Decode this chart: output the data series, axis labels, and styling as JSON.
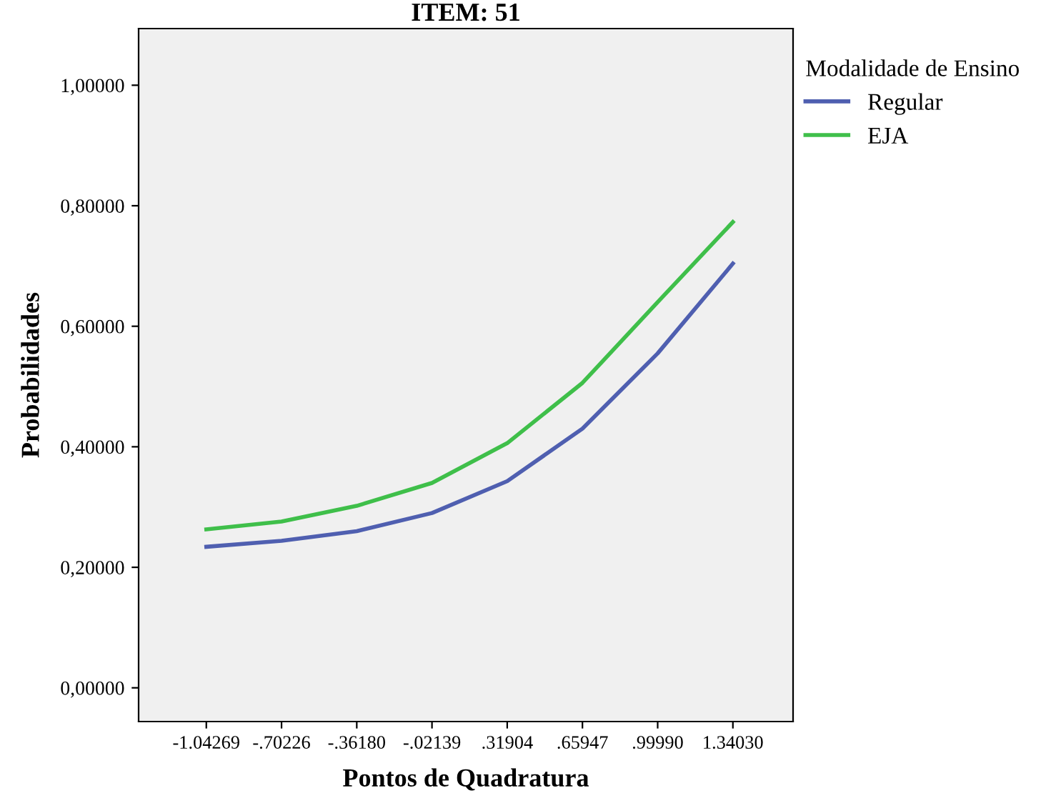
{
  "chart_data": {
    "type": "line",
    "title": "ITEM: 51",
    "xlabel": "Pontos de Quadratura",
    "ylabel": "Probabilidades",
    "legend_title": "Modalidade de Ensino",
    "legend": "top right",
    "categories": [
      "-1.04269",
      "-.70226",
      "-.36180",
      "-.02139",
      ".31904",
      ".65947",
      ".99990",
      "1.34030"
    ],
    "series": [
      {
        "name": "Regular",
        "color": "#4f5fb0",
        "values": [
          0.234,
          0.244,
          0.26,
          0.29,
          0.343,
          0.43,
          0.555,
          0.704
        ]
      },
      {
        "name": "EJA",
        "color": "#3fbf4a",
        "values": [
          0.263,
          0.276,
          0.302,
          0.34,
          0.406,
          0.506,
          0.64,
          0.773
        ]
      }
    ],
    "ylim": [
      -0.056,
      1.094
    ],
    "yticks": [
      {
        "value": 0,
        "label": "0,00000"
      },
      {
        "value": 0.2,
        "label": "0,20000"
      },
      {
        "value": 0.4,
        "label": "0,40000"
      },
      {
        "value": 0.6,
        "label": "0,60000"
      },
      {
        "value": 0.8,
        "label": "0,80000"
      },
      {
        "value": 1,
        "label": "1,00000"
      }
    ],
    "grid": false,
    "marker": "none",
    "line_style": "solid"
  }
}
